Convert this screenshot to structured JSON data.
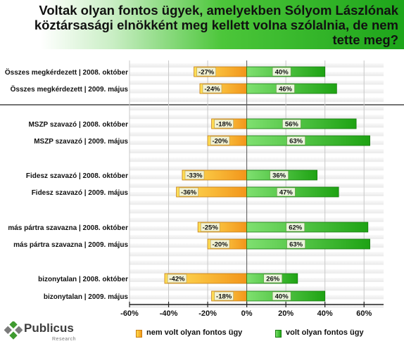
{
  "title": "Voltak olyan fontos ügyek, amelyekben Sólyom Lászlónak köztársasági elnökként meg kellett volna szólalnia, de nem tette meg?",
  "colors": {
    "negative": "#f5a623",
    "positive": "#2dbb1d",
    "title_band": "#1da51a",
    "label_bg": "#ececc0"
  },
  "legend": {
    "negative_label": "nem volt olyan fontos ügy",
    "positive_label": "volt olyan fontos ügy"
  },
  "logo": {
    "name": "Publicus",
    "sub": "Research"
  },
  "chart_data": {
    "type": "bar",
    "orientation": "horizontal",
    "stacked": "diverging",
    "categories": [
      "Összes megkérdezett | 2008. október",
      "Összes megkérdezett | 2009. május",
      "MSZP szavazó | 2008. október",
      "MSZP szavazó | 2009. május",
      "Fidesz szavazó | 2008. október",
      "Fidesz szavazó | 2009. május",
      "más pártra szavazna | 2008. október",
      "más pártra szavazna | 2009. május",
      "bizonytalan | 2008. október",
      "bizonytalan | 2009. május"
    ],
    "series": [
      {
        "name": "nem volt olyan fontos ügy",
        "values": [
          -27,
          -24,
          -18,
          -20,
          -33,
          -36,
          -25,
          -20,
          -42,
          -18
        ],
        "labels": [
          "-27%",
          "-24%",
          "-18%",
          "-20%",
          "-33%",
          "-36%",
          "-25%",
          "-20%",
          "-42%",
          "-18%"
        ]
      },
      {
        "name": "volt olyan fontos ügy",
        "values": [
          40,
          46,
          56,
          63,
          36,
          47,
          62,
          63,
          26,
          40
        ],
        "labels": [
          "40%",
          "46%",
          "56%",
          "63%",
          "36%",
          "47%",
          "62%",
          "63%",
          "26%",
          "40%"
        ]
      }
    ],
    "xlim": [
      -60,
      70
    ],
    "xticks": [
      "-60%",
      "-40%",
      "-20%",
      "0%",
      "20%",
      "40%",
      "60%"
    ],
    "xtick_values": [
      -60,
      -40,
      -20,
      0,
      20,
      40,
      60
    ],
    "grid": true,
    "legend_position": "bottom"
  }
}
